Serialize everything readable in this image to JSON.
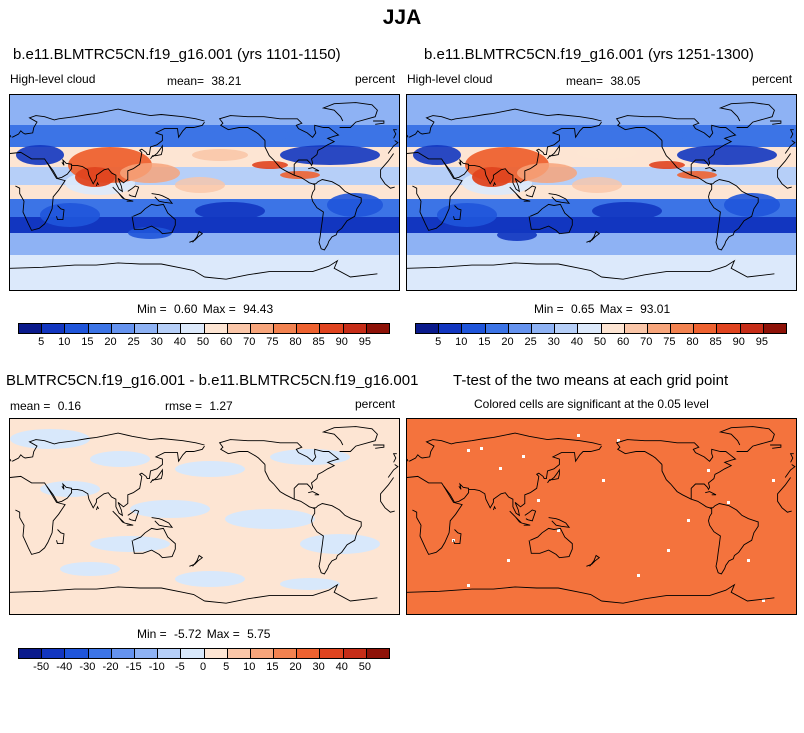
{
  "season": "JJA",
  "colors": {
    "abs_levels": [
      "#0a1a8c",
      "#1236c0",
      "#1f55da",
      "#3c74e6",
      "#6593ef",
      "#8eb2f4",
      "#b6cff8",
      "#dce9fb",
      "#fde5d3",
      "#fac6a8",
      "#f7a57b",
      "#f28250",
      "#ee6230",
      "#e0441f",
      "#c62d18",
      "#8e1208"
    ],
    "diff_levels": [
      "#0a1a8c",
      "#1236c0",
      "#1f55da",
      "#3c74e6",
      "#6593ef",
      "#8eb2f4",
      "#b6cff8",
      "#d8e8fb",
      "#fde5d3",
      "#fac6a8",
      "#f7a57b",
      "#f28250",
      "#ee6230",
      "#e0441f",
      "#c62d18",
      "#8e1208"
    ],
    "ttest_fill": "#f4733d"
  },
  "panels": {
    "top_left": {
      "title": "b.e11.BLMTRC5CN.f19_g16.001 (yrs 1101-1150)",
      "variable": "High-level cloud",
      "mean_label": "mean=",
      "mean_value": "38.21",
      "units": "percent",
      "min_label": "Min =",
      "min_value": "0.60",
      "max_label": "Max =",
      "max_value": "94.43"
    },
    "top_right": {
      "title": "b.e11.BLMTRC5CN.f19_g16.001 (yrs 1251-1300)",
      "variable": "High-level cloud",
      "mean_label": "mean=",
      "mean_value": "38.05",
      "units": "percent",
      "min_label": "Min =",
      "min_value": "0.65",
      "max_label": "Max =",
      "max_value": "93.01"
    },
    "bottom_left": {
      "title": "BLMTRC5CN.f19_g16.001 - b.e11.BLMTRC5CN.f19_g16.001",
      "mean_label": "mean =",
      "mean_value": "0.16",
      "rmse_label": "rmse =",
      "rmse_value": "1.27",
      "units": "percent",
      "min_label": "Min =",
      "min_value": "-5.72",
      "max_label": "Max =",
      "max_value": "5.75"
    },
    "bottom_right": {
      "title": "T-test of the two means at each grid point",
      "subtitle": "Colored cells are significant at the 0.05 level"
    }
  },
  "colorbars": {
    "abs_ticks": [
      "5",
      "10",
      "15",
      "20",
      "25",
      "30",
      "40",
      "50",
      "60",
      "70",
      "75",
      "80",
      "85",
      "90",
      "95"
    ],
    "diff_ticks": [
      "-50",
      "-40",
      "-30",
      "-20",
      "-15",
      "-10",
      "-5",
      "0",
      "5",
      "10",
      "15",
      "20",
      "30",
      "40",
      "50"
    ]
  }
}
